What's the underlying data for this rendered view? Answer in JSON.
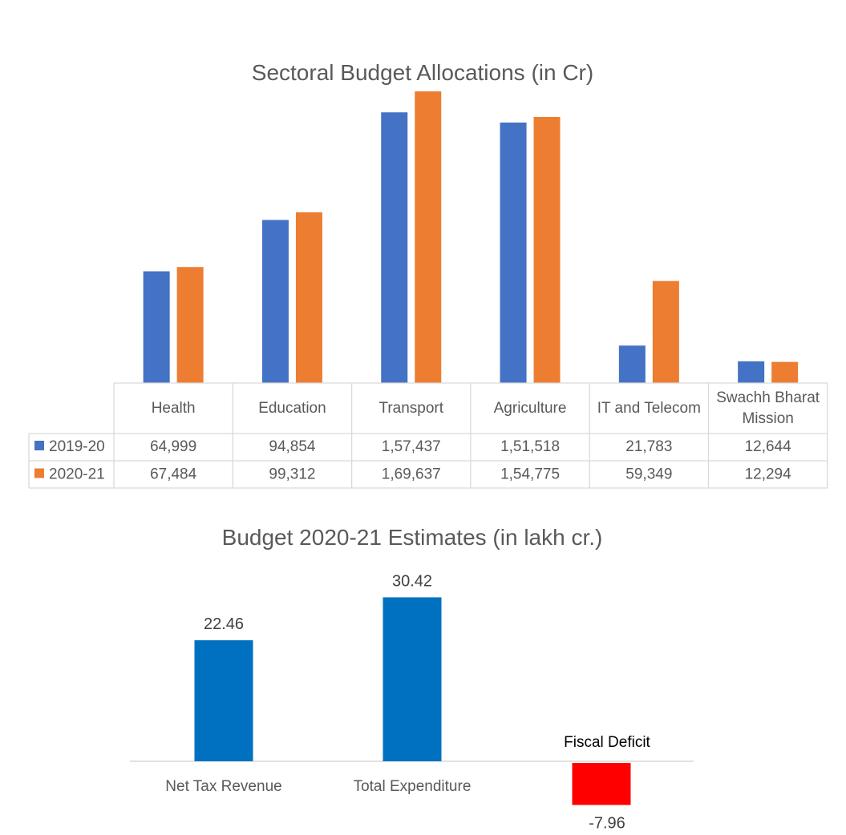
{
  "chart_data": [
    {
      "type": "bar",
      "title": "Sectoral Budget Allocations (in Cr)",
      "categories": [
        "Health",
        "Education",
        "Transport",
        "Agriculture",
        "IT and Telecom",
        "Swachh Bharat Mission"
      ],
      "series": [
        {
          "name": "2019-20",
          "color": "#4472C4",
          "values": [
            64999,
            94854,
            157437,
            151518,
            21783,
            12644
          ],
          "labels": [
            "64,999",
            "94,854",
            "1,57,437",
            "1,51,518",
            "21,783",
            "12,644"
          ]
        },
        {
          "name": "2020-21",
          "color": "#ED7D31",
          "values": [
            67484,
            99312,
            169637,
            154775,
            59349,
            12294
          ],
          "labels": [
            "67,484",
            "99,312",
            "1,69,637",
            "1,54,775",
            "59,349",
            "12,294"
          ]
        }
      ],
      "data_table": true,
      "ylim": [
        0,
        180000
      ]
    },
    {
      "type": "bar",
      "title": "Budget 2020-21 Estimates (in lakh cr.)",
      "categories": [
        "Net Tax Revenue",
        "Total Expenditure",
        "Fiscal Deficit"
      ],
      "values": [
        22.46,
        30.42,
        -7.96
      ],
      "labels": [
        "22.46",
        "30.42",
        "-7.96"
      ],
      "colors": [
        "#0070C0",
        "#0070C0",
        "#FF0000"
      ]
    }
  ]
}
